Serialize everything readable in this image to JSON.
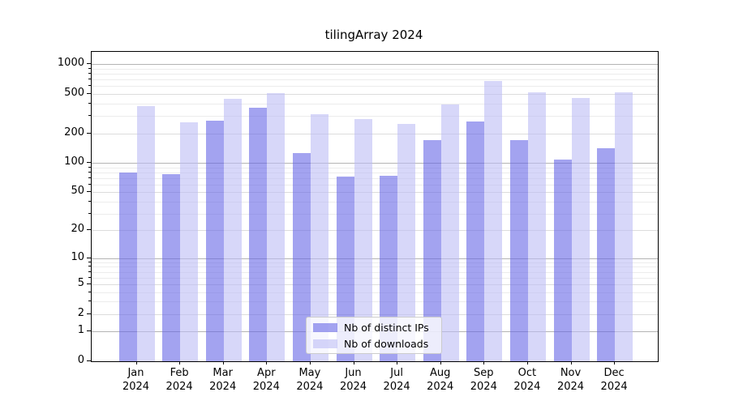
{
  "title": "tilingArray 2024",
  "legend": {
    "items": [
      {
        "label": "Nb of distinct IPs",
        "series_index": 0
      },
      {
        "label": "Nb of downloads",
        "series_index": 1
      }
    ]
  },
  "chart_data": {
    "type": "bar",
    "title": "tilingArray 2024",
    "categories": [
      "Jan 2024",
      "Feb 2024",
      "Mar 2024",
      "Apr 2024",
      "May 2024",
      "Jun 2024",
      "Jul 2024",
      "Aug 2024",
      "Sep 2024",
      "Oct 2024",
      "Nov 2024",
      "Dec 2024"
    ],
    "months": [
      "Jan",
      "Feb",
      "Mar",
      "Apr",
      "May",
      "Jun",
      "Jul",
      "Aug",
      "Sep",
      "Oct",
      "Nov",
      "Dec"
    ],
    "year": "2024",
    "series": [
      {
        "name": "Nb of distinct IPs",
        "color": "rgba(102,102,230,0.6)",
        "values": [
          80,
          77,
          270,
          360,
          127,
          73,
          74,
          172,
          266,
          172,
          108,
          140
        ]
      },
      {
        "name": "Nb of downloads",
        "color": "rgba(189,189,245,0.6)",
        "values": [
          380,
          260,
          445,
          515,
          315,
          280,
          247,
          395,
          672,
          525,
          460,
          525
        ]
      }
    ],
    "xlabel": "",
    "ylabel": "",
    "y_ticks": [
      1000,
      500,
      200,
      100,
      50,
      20,
      10,
      5,
      2,
      1,
      0
    ],
    "y_scale": "log1p",
    "ylim": [
      0,
      1336
    ],
    "grid": "horizontal, log minor + major gridlines",
    "legend_position": "lower center inside plot"
  }
}
